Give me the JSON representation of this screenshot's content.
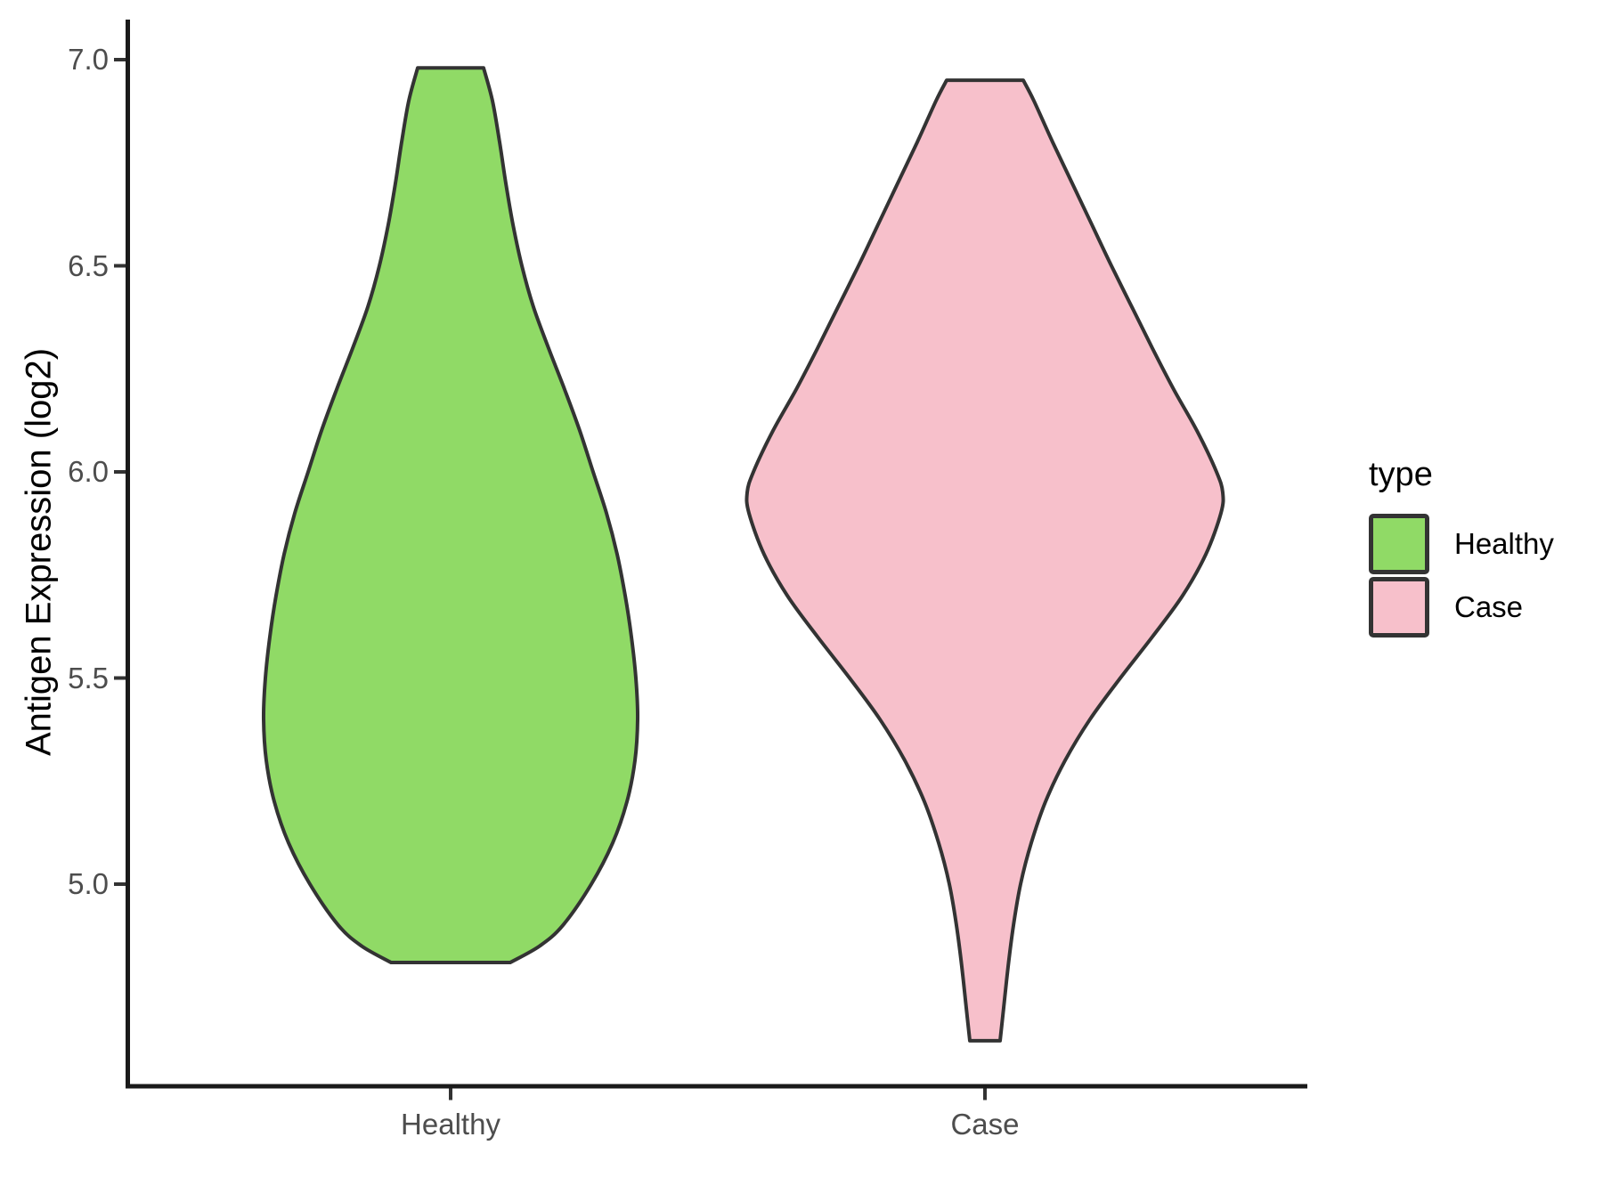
{
  "figure": {
    "background": "#FFFFFF"
  },
  "colors": {
    "healthy_fill": "#90DA66",
    "case_fill": "#F7C0CB",
    "violin_outline": "#333333",
    "axis_line": "#1A1A1A",
    "tick_mark": "#333333",
    "tick_text": "#4D4D4D",
    "title_text": "#000000"
  },
  "y_axis": {
    "title": "Antigen Expression (log2)",
    "tick_labels": [
      "7.0",
      "6.5",
      "6.0",
      "5.5",
      "5.0"
    ],
    "tick_values": [
      7.0,
      6.5,
      6.0,
      5.5,
      5.0
    ]
  },
  "x_axis": {
    "tick_labels": [
      "Healthy",
      "Case"
    ]
  },
  "legend": {
    "title": "type",
    "items": [
      {
        "label": "Healthy",
        "color": "#90DA66"
      },
      {
        "label": "Case",
        "color": "#F7C0CB"
      }
    ]
  },
  "chart_data": {
    "type": "violin",
    "title": "",
    "xlabel": "",
    "ylabel": "Antigen Expression (log2)",
    "categories": [
      "Healthy",
      "Case"
    ],
    "y_ticks": [
      7.0,
      6.5,
      6.0,
      5.5,
      5.0
    ],
    "ylim_shown": [
      4.45,
      7.1
    ],
    "grid": false,
    "legend_title": "type",
    "legend_position": "right",
    "series": [
      {
        "name": "Healthy",
        "fill": "#90DA66",
        "outline": "#333333",
        "value_range": [
          4.81,
          6.98
        ],
        "density_profile": [
          [
            6.98,
            37
          ],
          [
            6.9,
            47
          ],
          [
            6.8,
            55
          ],
          [
            6.7,
            62
          ],
          [
            6.6,
            70
          ],
          [
            6.5,
            80
          ],
          [
            6.4,
            93
          ],
          [
            6.3,
            110
          ],
          [
            6.2,
            128
          ],
          [
            6.1,
            145
          ],
          [
            6.0,
            160
          ],
          [
            5.9,
            175
          ],
          [
            5.8,
            187
          ],
          [
            5.7,
            196
          ],
          [
            5.6,
            203
          ],
          [
            5.5,
            208
          ],
          [
            5.4,
            210
          ],
          [
            5.3,
            207
          ],
          [
            5.2,
            198
          ],
          [
            5.1,
            182
          ],
          [
            5.0,
            158
          ],
          [
            4.9,
            126
          ],
          [
            4.85,
            100
          ],
          [
            4.81,
            67
          ]
        ]
      },
      {
        "name": "Case",
        "fill": "#F7C0CB",
        "outline": "#333333",
        "value_range": [
          4.62,
          6.95
        ],
        "density_profile": [
          [
            6.95,
            43
          ],
          [
            6.9,
            55
          ],
          [
            6.8,
            76
          ],
          [
            6.7,
            98
          ],
          [
            6.6,
            120
          ],
          [
            6.5,
            142
          ],
          [
            6.4,
            165
          ],
          [
            6.3,
            188
          ],
          [
            6.2,
            212
          ],
          [
            6.1,
            238
          ],
          [
            6.0,
            260
          ],
          [
            5.95,
            267
          ],
          [
            5.9,
            265
          ],
          [
            5.8,
            248
          ],
          [
            5.7,
            222
          ],
          [
            5.6,
            188
          ],
          [
            5.5,
            152
          ],
          [
            5.4,
            118
          ],
          [
            5.3,
            90
          ],
          [
            5.2,
            68
          ],
          [
            5.1,
            52
          ],
          [
            5.0,
            40
          ],
          [
            4.9,
            32
          ],
          [
            4.8,
            26
          ],
          [
            4.7,
            21
          ],
          [
            4.62,
            17
          ]
        ]
      }
    ]
  }
}
